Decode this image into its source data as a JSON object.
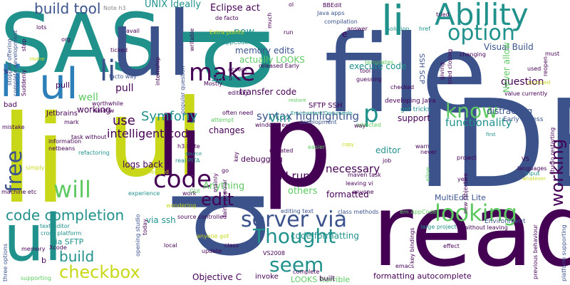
{
  "palette": {
    "purple": "#440154",
    "indigo": "#3b528b",
    "teal": "#21918c",
    "green": "#5ec962",
    "yellow": "#c8d818",
    "cyan": "#2c7fb8",
    "grey": "#888888"
  },
  "words": [
    {
      "t": "file",
      "c": "#3b528b"
    },
    {
      "t": "read",
      "c": "#440154"
    },
    {
      "t": "IDE",
      "c": "#3b528b"
    },
    {
      "t": "li",
      "c": "#c8d818"
    },
    {
      "t": "ul",
      "c": "#c8d818"
    },
    {
      "t": "SAS",
      "c": "#21918c"
    },
    {
      "t": "ul",
      "c": "#3b528b"
    },
    {
      "t": "li",
      "c": "#440154"
    },
    {
      "t": "p",
      "c": "#21918c"
    },
    {
      "t": "p",
      "c": "#440154"
    },
    {
      "t": "p",
      "c": "#3b528b"
    },
    {
      "t": "li",
      "c": "#2c7fb8"
    },
    {
      "t": "ul",
      "c": "#2c7fb8"
    },
    {
      "t": "li",
      "c": "#3b528b"
    },
    {
      "t": "ul",
      "c": "#21918c"
    },
    {
      "t": "Ability",
      "c": "#21918c"
    },
    {
      "t": "li",
      "c": "#21918c"
    },
    {
      "t": "option",
      "c": "#21918c"
    },
    {
      "t": "make",
      "c": "#440154"
    },
    {
      "t": "looking",
      "c": "#5ec962"
    },
    {
      "t": "server via",
      "c": "#3b528b"
    },
    {
      "t": "code",
      "c": "#440154"
    },
    {
      "t": "Thought",
      "c": "#21918c"
    },
    {
      "t": "seem",
      "c": "#21918c"
    },
    {
      "t": "checkbox",
      "c": "#c8d818"
    },
    {
      "t": "know",
      "c": "#5ec962"
    },
    {
      "t": "will",
      "c": "#5ec962"
    },
    {
      "t": "free",
      "c": "#3b528b"
    },
    {
      "t": "working",
      "c": "#440154"
    },
    {
      "t": "code completion",
      "c": "#21918c"
    },
    {
      "t": "build tool",
      "c": "#3b528b"
    },
    {
      "t": "build",
      "c": "#21918c"
    },
    {
      "t": "edit",
      "c": "#440154"
    },
    {
      "t": "p",
      "c": "#21918c"
    },
    {
      "t": "use",
      "c": "#440154"
    },
    {
      "t": "Symfony",
      "c": "#21918c"
    },
    {
      "t": "now",
      "c": "#21918c"
    },
    {
      "t": "intelligent code",
      "c": "#440154"
    },
    {
      "t": "functionality",
      "c": "#21918c"
    },
    {
      "t": "syntax highlighting",
      "c": "#3b528b"
    },
    {
      "t": "Vim",
      "c": "#21918c"
    },
    {
      "t": "Save",
      "c": "#21918c"
    },
    {
      "t": "pull",
      "c": "#440154"
    },
    {
      "t": "well",
      "c": "#5ec962"
    },
    {
      "t": "question",
      "c": "#440154"
    },
    {
      "t": "will run",
      "c": "#440154"
    },
    {
      "t": "Anything",
      "c": "#5ec962"
    },
    {
      "t": "necessary",
      "c": "#440154"
    },
    {
      "t": "editor",
      "c": "#21918c"
    },
    {
      "t": "distracting",
      "c": "#3b528b"
    },
    {
      "t": "others",
      "c": "#5ec962"
    },
    {
      "t": "UNIX Ideally",
      "c": "#21918c"
    },
    {
      "t": "Eclipse act",
      "c": "#440154"
    },
    {
      "t": "memory edits",
      "c": "#3b528b"
    },
    {
      "t": "transfer code",
      "c": "#440154"
    },
    {
      "t": "execute code",
      "c": "#21918c"
    },
    {
      "t": "Visual Build",
      "c": "#3b528b"
    },
    {
      "t": "actually LOOKS",
      "c": "#5ec962"
    },
    {
      "t": "changes",
      "c": "#440154"
    },
    {
      "t": "logs back",
      "c": "#440154"
    },
    {
      "t": "via ssh",
      "c": "#21918c"
    },
    {
      "t": "support",
      "c": "#440154"
    },
    {
      "t": "formatted",
      "c": "#440154"
    },
    {
      "t": "code formatting",
      "c": "#21918c"
    },
    {
      "t": "MultiEdit Lite",
      "c": "#3b528b"
    },
    {
      "t": "SFTP SSH",
      "c": "#440154"
    },
    {
      "t": "SSH SCP",
      "c": "#3b528b"
    },
    {
      "t": "Never allow",
      "c": "#5ec962"
    },
    {
      "t": "Objective C",
      "c": "#440154"
    },
    {
      "t": "debugging",
      "c": "#440154"
    },
    {
      "t": "via SFTP",
      "c": "#21918c"
    },
    {
      "t": "Jetbrains",
      "c": "#440154"
    },
    {
      "t": "formatting autocomplete",
      "c": "#440154"
    },
    {
      "t": "LOOKS horrible",
      "c": "#5ec962"
    },
    {
      "t": "Environment",
      "c": "#3b528b"
    },
    {
      "t": "Early Access",
      "c": "#3b528b"
    },
    {
      "t": "bad",
      "c": "#440154"
    },
    {
      "t": "pull",
      "c": "#440154"
    },
    {
      "t": "working",
      "c": "#440154"
    },
    {
      "t": "invoke",
      "c": "#440154"
    },
    {
      "t": "built",
      "c": "#440154"
    },
    {
      "t": "b",
      "c": "#440154"
    }
  ],
  "small_words": [
    {
      "t": "Note h3",
      "c": "#888888"
    },
    {
      "t": "BBEdit",
      "c": "#440154"
    },
    {
      "t": "Java apps",
      "c": "#3b528b"
    },
    {
      "t": "compilation",
      "c": "#3b528b"
    },
    {
      "t": "answer",
      "c": "#440154"
    },
    {
      "t": "solution",
      "c": "#21918c"
    },
    {
      "t": "href",
      "c": "#21918c"
    },
    {
      "t": "de facto",
      "c": "#440154"
    },
    {
      "t": "org",
      "c": "#440154"
    },
    {
      "t": "avail",
      "c": "#440154"
    },
    {
      "t": "Extra points",
      "c": "#c8d818"
    },
    {
      "t": "AppCode em",
      "c": "#21918c"
    },
    {
      "t": "ticked",
      "c": "#440154"
    },
    {
      "t": "facto way",
      "c": "#3b528b"
    },
    {
      "t": "worthwhile",
      "c": "#440154"
    },
    {
      "t": "window",
      "c": "#440154"
    },
    {
      "t": "popular question",
      "c": "#3b528b"
    },
    {
      "t": "Mostly",
      "c": "#440154"
    },
    {
      "t": "released Early",
      "c": "#440154"
    },
    {
      "t": "accept",
      "c": "#440154"
    },
    {
      "t": "templates",
      "c": "#5ec962"
    },
    {
      "t": "tool",
      "c": "#440154"
    },
    {
      "t": "guessing",
      "c": "#440154"
    },
    {
      "t": "checked",
      "c": "#440154"
    },
    {
      "t": "changing",
      "c": "#440154"
    },
    {
      "t": "value currently",
      "c": "#440154"
    },
    {
      "t": "often need",
      "c": "#440154"
    },
    {
      "t": "attempt",
      "c": "#5ec962"
    },
    {
      "t": "windows explorer",
      "c": "#440154"
    },
    {
      "t": "development",
      "c": "#3b528b"
    },
    {
      "t": "addicted",
      "c": "#5ec962"
    },
    {
      "t": "got tricks",
      "c": "#21918c"
    },
    {
      "t": "developing Java",
      "c": "#440154"
    },
    {
      "t": "job",
      "c": "#440154"
    },
    {
      "t": "maven task",
      "c": "#440154"
    },
    {
      "t": "leaving vi",
      "c": "#440154"
    },
    {
      "t": "anyone",
      "c": "#440154"
    },
    {
      "t": "warn",
      "c": "#440154"
    },
    {
      "t": "never",
      "c": "#440154"
    },
    {
      "t": "yes",
      "c": "#440154"
    },
    {
      "t": "languages",
      "c": "#440154"
    },
    {
      "t": "input",
      "c": "#21918c"
    },
    {
      "t": "task without",
      "c": "#440154"
    },
    {
      "t": "information",
      "c": "#440154"
    },
    {
      "t": "netbeans",
      "c": "#440154"
    },
    {
      "t": "refactoring",
      "c": "#21918c"
    },
    {
      "t": "full fledged",
      "c": "#c8d818"
    },
    {
      "t": "experience",
      "c": "#21918c"
    },
    {
      "t": "work",
      "c": "#440154"
    },
    {
      "t": "wondering",
      "c": "#c8d818"
    },
    {
      "t": "machine etc",
      "c": "#440154"
    },
    {
      "t": "text editor",
      "c": "#21918c"
    },
    {
      "t": "cross platform",
      "c": "#21918c"
    },
    {
      "t": "Xcode",
      "c": "#440154"
    },
    {
      "t": "memory",
      "c": "#440154"
    },
    {
      "t": "supporting",
      "c": "#5ec962"
    },
    {
      "t": "three options",
      "c": "#3b528b"
    },
    {
      "t": "local",
      "c": "#440154"
    },
    {
      "t": "update",
      "c": "#440154"
    },
    {
      "t": "class",
      "c": "#440154"
    },
    {
      "t": "VS2008",
      "c": "#440154"
    },
    {
      "t": "anyone got",
      "c": "#c8d818"
    },
    {
      "t": "source controlled",
      "c": "#440154"
    },
    {
      "t": "editing text",
      "c": "#3b528b"
    },
    {
      "t": "class methods",
      "c": "#3b528b"
    },
    {
      "t": "em AppCode",
      "c": "#5ec962"
    },
    {
      "t": "large project",
      "c": "#21918c"
    },
    {
      "t": "without leaving",
      "c": "#440154"
    },
    {
      "t": "effect",
      "c": "#440154"
    },
    {
      "t": "emacs",
      "c": "#440154"
    },
    {
      "t": "complete",
      "c": "#440154"
    },
    {
      "t": "key bindings",
      "c": "#440154"
    },
    {
      "t": "previous behaviour",
      "c": "#440154"
    },
    {
      "t": "platform supporting",
      "c": "#3b528b"
    },
    {
      "t": "GUI",
      "c": "#5ec962"
    },
    {
      "t": "go",
      "c": "#440154"
    },
    {
      "t": "real PITA",
      "c": "#21918c"
    },
    {
      "t": "h3 Note",
      "c": "#440154"
    },
    {
      "t": "updated",
      "c": "#440154"
    },
    {
      "t": "easier",
      "c": "#5ec962"
    },
    {
      "t": "VS",
      "c": "#440154"
    },
    {
      "t": "way",
      "c": "#440154"
    },
    {
      "t": "mark",
      "c": "#440154"
    },
    {
      "t": "editing",
      "c": "#440154"
    },
    {
      "t": "stopped offering",
      "c": "#3b528b"
    },
    {
      "t": "Suddenly",
      "c": "#440154"
    },
    {
      "t": "complete development",
      "c": "#3b528b"
    },
    {
      "t": "mistake",
      "c": "#440154"
    },
    {
      "t": "vi",
      "c": "#440154"
    },
    {
      "t": "simply",
      "c": "#c8d818"
    },
    {
      "t": "step",
      "c": "#440154"
    },
    {
      "t": "lots",
      "c": "#440154"
    },
    {
      "t": "run",
      "c": "#440154"
    },
    {
      "t": "much",
      "c": "#440154"
    },
    {
      "t": "tried",
      "c": "#440154"
    },
    {
      "t": "ol",
      "c": "#440154"
    },
    {
      "t": "e",
      "c": "#440154"
    },
    {
      "t": "must",
      "c": "#440154"
    },
    {
      "t": "used",
      "c": "#440154"
    },
    {
      "t": "allow",
      "c": "#5ec962"
    },
    {
      "t": "project",
      "c": "#440154"
    },
    {
      "t": "whatever",
      "c": "#c8d818"
    },
    {
      "t": "fairly popular",
      "c": "#440154"
    },
    {
      "t": "mainly",
      "c": "#440154"
    },
    {
      "t": "today",
      "c": "#440154"
    },
    {
      "t": "opening studio",
      "c": "#3b528b"
    },
    {
      "t": "reopen",
      "c": "#440154"
    },
    {
      "t": "giving",
      "c": "#440154"
    },
    {
      "t": "tried closing",
      "c": "#440154"
    },
    {
      "t": "internship",
      "c": "#440154"
    },
    {
      "t": "writable",
      "c": "#440154"
    },
    {
      "t": "new Objective",
      "c": "#440154"
    },
    {
      "t": "studio restarting",
      "c": "#440154"
    },
    {
      "t": "Environment Documents",
      "c": "#21918c"
    },
    {
      "t": "first",
      "c": "#21918c"
    },
    {
      "t": "key",
      "c": "#440154"
    },
    {
      "t": "source",
      "c": "#21918c"
    },
    {
      "t": "restore",
      "c": "#5ec962"
    },
    {
      "t": "Home",
      "c": "#c8d818"
    },
    {
      "t": "copy",
      "c": "#c8d818"
    },
    {
      "t": "accessed",
      "c": "#c8d818"
    }
  ]
}
